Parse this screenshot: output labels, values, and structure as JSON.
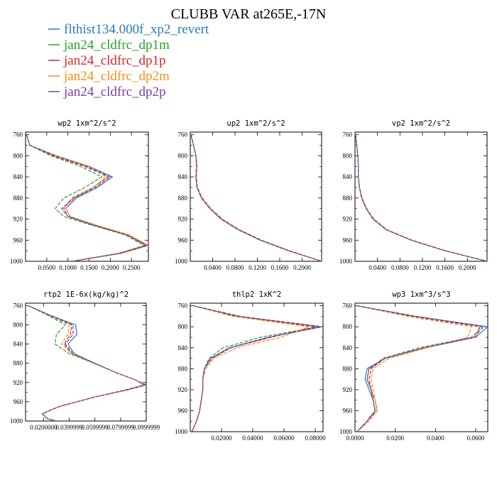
{
  "title": "CLUBB VAR at265E,-17N",
  "legend": [
    {
      "label": "flthist134.000f_xp2_revert",
      "color": "#2b7bba"
    },
    {
      "label": "jan24_cldfrc_dp1m",
      "color": "#2ca02c"
    },
    {
      "label": "jan24_cldfrc_dp1p",
      "color": "#d62728"
    },
    {
      "label": "jan24_cldfrc_dp2m",
      "color": "#ff8c1a"
    },
    {
      "label": "jan24_cldfrc_dp2p",
      "color": "#7b3fa0"
    }
  ],
  "chart_data": [
    {
      "type": "line",
      "title": "wp2   1xm^2/s^2",
      "xlim": [
        0,
        0.29
      ],
      "ylim": [
        1000,
        755
      ],
      "xticks": [
        0.05,
        0.1,
        0.15,
        0.2,
        0.25
      ],
      "xtick_labels": [
        "0.0500",
        "0.1000",
        "0.1500",
        "0.2000",
        "0.2500"
      ],
      "yticks": [
        760,
        800,
        840,
        880,
        920,
        960,
        1000
      ],
      "y": [
        760,
        780,
        800,
        820,
        840,
        860,
        880,
        900,
        915,
        930,
        950,
        970,
        985,
        1000
      ],
      "series": [
        {
          "values": [
            0.002,
            0.01,
            0.07,
            0.15,
            0.205,
            0.17,
            0.12,
            0.095,
            0.105,
            0.16,
            0.24,
            0.285,
            0.22,
            0.11
          ]
        },
        {
          "values": [
            0.002,
            0.01,
            0.06,
            0.13,
            0.18,
            0.14,
            0.09,
            0.07,
            0.09,
            0.15,
            0.235,
            0.28,
            0.22,
            0.11
          ]
        },
        {
          "values": [
            0.002,
            0.01,
            0.065,
            0.14,
            0.195,
            0.16,
            0.11,
            0.09,
            0.1,
            0.155,
            0.24,
            0.29,
            0.225,
            0.11
          ]
        },
        {
          "values": [
            0.002,
            0.01,
            0.075,
            0.15,
            0.19,
            0.16,
            0.115,
            0.095,
            0.105,
            0.16,
            0.245,
            0.29,
            0.225,
            0.11
          ]
        },
        {
          "values": [
            0.002,
            0.01,
            0.068,
            0.145,
            0.2,
            0.165,
            0.115,
            0.085,
            0.1,
            0.155,
            0.24,
            0.285,
            0.222,
            0.11
          ]
        }
      ]
    },
    {
      "type": "line",
      "title": "up2   1xm^2/s^2",
      "xlim": [
        0,
        0.235
      ],
      "ylim": [
        1000,
        755
      ],
      "xticks": [
        0.04,
        0.08,
        0.12,
        0.16,
        0.2
      ],
      "xtick_labels": [
        "0.0400",
        "0.0800",
        "0.1200",
        "0.1600",
        "0.2000"
      ],
      "yticks": [
        760,
        800,
        840,
        880,
        920,
        960,
        1000
      ],
      "y": [
        760,
        780,
        800,
        820,
        840,
        860,
        880,
        900,
        920,
        940,
        960,
        980,
        1000
      ],
      "series": [
        {
          "values": [
            0.001,
            0.006,
            0.01,
            0.012,
            0.01,
            0.012,
            0.02,
            0.035,
            0.055,
            0.085,
            0.125,
            0.175,
            0.235
          ]
        },
        {
          "values": [
            0.001,
            0.006,
            0.01,
            0.011,
            0.01,
            0.012,
            0.02,
            0.035,
            0.056,
            0.086,
            0.126,
            0.176,
            0.235
          ]
        },
        {
          "values": [
            0.001,
            0.006,
            0.01,
            0.012,
            0.011,
            0.013,
            0.021,
            0.036,
            0.057,
            0.087,
            0.127,
            0.177,
            0.235
          ]
        },
        {
          "values": [
            0.001,
            0.006,
            0.01,
            0.012,
            0.011,
            0.013,
            0.022,
            0.037,
            0.058,
            0.088,
            0.128,
            0.178,
            0.235
          ]
        },
        {
          "values": [
            0.001,
            0.006,
            0.01,
            0.011,
            0.01,
            0.012,
            0.02,
            0.035,
            0.055,
            0.086,
            0.126,
            0.176,
            0.235
          ]
        }
      ]
    },
    {
      "type": "line",
      "title": "vp2   1xm^2/s^2",
      "xlim": [
        0,
        0.235
      ],
      "ylim": [
        1000,
        755
      ],
      "xticks": [
        0.04,
        0.08,
        0.12,
        0.16,
        0.2
      ],
      "xtick_labels": [
        "0.0400",
        "0.0800",
        "0.1200",
        "0.1600",
        "0.2000"
      ],
      "yticks": [
        760,
        800,
        840,
        880,
        920,
        960,
        1000
      ],
      "y": [
        760,
        780,
        800,
        820,
        840,
        860,
        880,
        900,
        920,
        940,
        960,
        980,
        1000
      ],
      "series": [
        {
          "values": [
            0.001,
            0.003,
            0.005,
            0.006,
            0.006,
            0.008,
            0.012,
            0.02,
            0.032,
            0.055,
            0.1,
            0.16,
            0.235
          ]
        },
        {
          "values": [
            0.001,
            0.003,
            0.005,
            0.006,
            0.006,
            0.008,
            0.012,
            0.02,
            0.032,
            0.056,
            0.1,
            0.16,
            0.235
          ]
        },
        {
          "values": [
            0.001,
            0.003,
            0.005,
            0.006,
            0.006,
            0.008,
            0.012,
            0.021,
            0.033,
            0.056,
            0.101,
            0.161,
            0.235
          ]
        },
        {
          "values": [
            0.001,
            0.003,
            0.005,
            0.006,
            0.006,
            0.008,
            0.013,
            0.021,
            0.034,
            0.057,
            0.102,
            0.162,
            0.235
          ]
        },
        {
          "values": [
            0.001,
            0.003,
            0.005,
            0.006,
            0.006,
            0.008,
            0.012,
            0.02,
            0.032,
            0.055,
            0.1,
            0.16,
            0.235
          ]
        }
      ]
    },
    {
      "type": "line",
      "title": "rtp2   1E-6x(kg/kg)^2",
      "xlim": [
        0.006,
        0.1
      ],
      "ylim": [
        1000,
        755
      ],
      "xticks": [
        0.02,
        0.04,
        0.06,
        0.08,
        0.1
      ],
      "xtick_labels": [
        "0.0200000",
        "0.0399999",
        "0.0599999",
        "0.0799999",
        "0.0999999"
      ],
      "yticks": [
        760,
        800,
        840,
        880,
        920,
        960,
        1000
      ],
      "y": [
        760,
        780,
        800,
        820,
        840,
        860,
        880,
        900,
        915,
        925,
        935,
        950,
        970,
        985,
        995,
        1000
      ],
      "series": [
        {
          "values": [
            0.008,
            0.025,
            0.045,
            0.046,
            0.039,
            0.044,
            0.06,
            0.077,
            0.092,
            0.099,
            0.085,
            0.06,
            0.032,
            0.019,
            0.023,
            0.03
          ]
        },
        {
          "values": [
            0.008,
            0.023,
            0.037,
            0.03,
            0.029,
            0.04,
            0.059,
            0.077,
            0.092,
            0.098,
            0.084,
            0.06,
            0.032,
            0.019,
            0.023,
            0.03
          ]
        },
        {
          "values": [
            0.008,
            0.024,
            0.042,
            0.041,
            0.036,
            0.042,
            0.06,
            0.077,
            0.092,
            0.1,
            0.086,
            0.06,
            0.032,
            0.019,
            0.023,
            0.03
          ]
        },
        {
          "values": [
            0.008,
            0.024,
            0.04,
            0.039,
            0.034,
            0.042,
            0.06,
            0.077,
            0.092,
            0.099,
            0.085,
            0.06,
            0.032,
            0.019,
            0.023,
            0.03
          ]
        },
        {
          "values": [
            0.008,
            0.024,
            0.043,
            0.043,
            0.037,
            0.043,
            0.06,
            0.077,
            0.092,
            0.099,
            0.085,
            0.06,
            0.032,
            0.019,
            0.023,
            0.03
          ]
        }
      ]
    },
    {
      "type": "line",
      "title": "thlp2   1xK^2",
      "xlim": [
        0,
        0.085
      ],
      "ylim": [
        1000,
        755
      ],
      "xticks": [
        0.02,
        0.04,
        0.06,
        0.08
      ],
      "xtick_labels": [
        "0.02000",
        "0.04000",
        "0.06000",
        "0.08000"
      ],
      "yticks": [
        760,
        800,
        840,
        880,
        920,
        960,
        1000
      ],
      "y": [
        760,
        780,
        800,
        820,
        840,
        860,
        880,
        900,
        920,
        940,
        960,
        980,
        1000
      ],
      "series": [
        {
          "values": [
            0.002,
            0.03,
            0.083,
            0.05,
            0.025,
            0.013,
            0.009,
            0.008,
            0.008,
            0.007,
            0.006,
            0.004,
            0.001
          ]
        },
        {
          "values": [
            0.002,
            0.03,
            0.082,
            0.045,
            0.021,
            0.012,
            0.009,
            0.008,
            0.008,
            0.007,
            0.006,
            0.004,
            0.001
          ]
        },
        {
          "values": [
            0.002,
            0.028,
            0.08,
            0.052,
            0.026,
            0.014,
            0.009,
            0.008,
            0.008,
            0.007,
            0.006,
            0.004,
            0.001
          ]
        },
        {
          "values": [
            0.002,
            0.027,
            0.076,
            0.058,
            0.03,
            0.015,
            0.01,
            0.008,
            0.008,
            0.007,
            0.006,
            0.004,
            0.001
          ]
        },
        {
          "values": [
            0.002,
            0.032,
            0.085,
            0.05,
            0.026,
            0.013,
            0.009,
            0.008,
            0.008,
            0.007,
            0.006,
            0.004,
            0.001
          ]
        }
      ]
    },
    {
      "type": "line",
      "title": "wp3   1xm^3/s^3",
      "xlim": [
        0,
        0.066
      ],
      "ylim": [
        1000,
        755
      ],
      "xticks": [
        0.0,
        0.02,
        0.04,
        0.06
      ],
      "xtick_labels": [
        "0.0000",
        "0.0200",
        "0.0400",
        "0.0600"
      ],
      "yticks": [
        760,
        800,
        840,
        880,
        920,
        960,
        1000
      ],
      "y": [
        760,
        780,
        800,
        820,
        840,
        860,
        880,
        900,
        920,
        940,
        960,
        980,
        1000
      ],
      "series": [
        {
          "values": [
            0.001,
            0.03,
            0.066,
            0.06,
            0.035,
            0.015,
            0.006,
            0.005,
            0.007,
            0.009,
            0.01,
            0.006,
            0.001
          ]
        },
        {
          "values": [
            0.001,
            0.03,
            0.063,
            0.058,
            0.032,
            0.014,
            0.007,
            0.006,
            0.008,
            0.009,
            0.01,
            0.006,
            0.001
          ]
        },
        {
          "values": [
            0.001,
            0.028,
            0.062,
            0.06,
            0.034,
            0.015,
            0.008,
            0.007,
            0.008,
            0.01,
            0.011,
            0.006,
            0.001
          ]
        },
        {
          "values": [
            0.001,
            0.026,
            0.058,
            0.056,
            0.036,
            0.017,
            0.009,
            0.008,
            0.009,
            0.01,
            0.011,
            0.007,
            0.001
          ]
        },
        {
          "values": [
            0.001,
            0.03,
            0.064,
            0.059,
            0.034,
            0.015,
            0.007,
            0.006,
            0.008,
            0.009,
            0.01,
            0.006,
            0.001
          ]
        }
      ]
    }
  ]
}
